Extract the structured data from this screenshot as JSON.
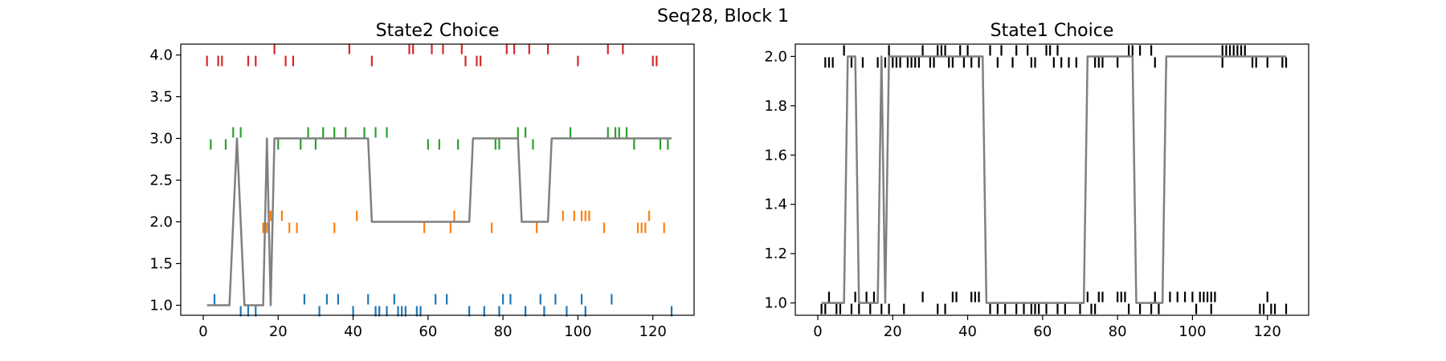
{
  "suptitle": "Seq28, Block 1",
  "chart_data": [
    {
      "type": "scatter",
      "title": "State2 Choice",
      "xlim": [
        -6,
        131
      ],
      "ylim": [
        0.88,
        4.13
      ],
      "xticks": [
        0,
        20,
        40,
        60,
        80,
        100,
        120
      ],
      "yticks": [
        1.0,
        1.5,
        2.0,
        2.5,
        3.0,
        3.5,
        4.0
      ],
      "ytick_labels": [
        "1.0",
        "1.5",
        "2.0",
        "2.5",
        "3.0",
        "3.5",
        "4.0"
      ],
      "series": [
        {
          "level": 1,
          "color": "#1f77b4",
          "up": [
            3,
            27,
            33,
            36,
            44,
            51,
            62,
            65,
            80,
            82,
            90,
            94,
            101,
            109
          ],
          "down": [
            10,
            12,
            14,
            31,
            40,
            46,
            47,
            49,
            52,
            53,
            54,
            57,
            58,
            71,
            75,
            79,
            86,
            91,
            97,
            102,
            125
          ]
        },
        {
          "level": 2,
          "color": "#ff7f0e",
          "up": [
            18,
            21,
            41,
            67,
            96,
            99,
            101,
            102,
            103,
            119
          ],
          "down": [
            16,
            17,
            23,
            25,
            35,
            59,
            66,
            77,
            89,
            107,
            116,
            117,
            118,
            123
          ]
        },
        {
          "level": 3,
          "color": "#2ca02c",
          "up": [
            8,
            10,
            28,
            32,
            35,
            38,
            43,
            46,
            49,
            84,
            86,
            98,
            108,
            110,
            111,
            113
          ],
          "down": [
            2,
            6,
            20,
            26,
            30,
            60,
            63,
            68,
            78,
            79,
            88,
            115,
            122,
            124
          ]
        },
        {
          "level": 4,
          "color": "#d62728",
          "up": [
            19,
            39,
            55,
            56,
            61,
            64,
            69,
            81,
            83,
            87,
            92,
            108,
            112
          ],
          "down": [
            1,
            4,
            5,
            12,
            14,
            22,
            24,
            45,
            70,
            73,
            74,
            100,
            120,
            121
          ]
        }
      ],
      "line": {
        "color": "#808080",
        "x": [
          1,
          7,
          9,
          11,
          16,
          17,
          18,
          19,
          44,
          45,
          71,
          72,
          84,
          85,
          92,
          93,
          125
        ],
        "y": [
          1,
          1,
          3,
          1,
          1,
          3,
          1,
          3,
          3,
          2,
          2,
          3,
          3,
          2,
          2,
          3,
          3
        ]
      }
    },
    {
      "type": "scatter",
      "title": "State1 Choice",
      "xlim": [
        -6,
        131
      ],
      "ylim": [
        0.95,
        2.05
      ],
      "xticks": [
        0,
        20,
        40,
        60,
        80,
        100,
        120
      ],
      "yticks": [
        1.0,
        1.2,
        1.4,
        1.6,
        1.8,
        2.0
      ],
      "ytick_labels": [
        "1.0",
        "1.2",
        "1.4",
        "1.6",
        "1.8",
        "2.0"
      ],
      "series": [
        {
          "level": 1,
          "color": "#000000",
          "up": [
            3,
            10,
            13,
            15,
            28,
            36,
            37,
            41,
            42,
            43,
            72,
            75,
            76,
            80,
            81,
            82,
            90,
            92,
            94,
            96,
            98,
            100,
            102,
            103,
            104,
            105,
            106,
            120
          ],
          "down": [
            1,
            2,
            5,
            6,
            9,
            11,
            14,
            17,
            19,
            23,
            32,
            34,
            46,
            48,
            50,
            53,
            55,
            57,
            58,
            59,
            61,
            64,
            66,
            70,
            73,
            74,
            83,
            86,
            89,
            91,
            101,
            105,
            118,
            119,
            121,
            122,
            125
          ]
        },
        {
          "level": 2,
          "color": "#000000",
          "up": [
            7,
            19,
            28,
            32,
            33,
            34,
            38,
            40,
            46,
            49,
            53,
            56,
            61,
            62,
            64,
            83,
            84,
            86,
            89,
            108,
            109,
            110,
            111,
            112,
            113,
            114
          ],
          "down": [
            2,
            3,
            4,
            9,
            10,
            12,
            16,
            18,
            20,
            21,
            22,
            24,
            25,
            26,
            27,
            30,
            31,
            35,
            36,
            39,
            41,
            43,
            48,
            52,
            57,
            58,
            63,
            65,
            67,
            69,
            74,
            75,
            76,
            80,
            90,
            93,
            108,
            116,
            117,
            120,
            124,
            125
          ]
        }
      ],
      "line": {
        "color": "#808080",
        "x": [
          1,
          7,
          8,
          10,
          11,
          16,
          17,
          18,
          19,
          44,
          45,
          71,
          72,
          84,
          85,
          92,
          93,
          125
        ],
        "y": [
          1,
          1,
          2,
          2,
          1,
          1,
          2,
          1,
          2,
          2,
          1,
          1,
          2,
          2,
          1,
          1,
          2,
          2
        ]
      }
    }
  ]
}
